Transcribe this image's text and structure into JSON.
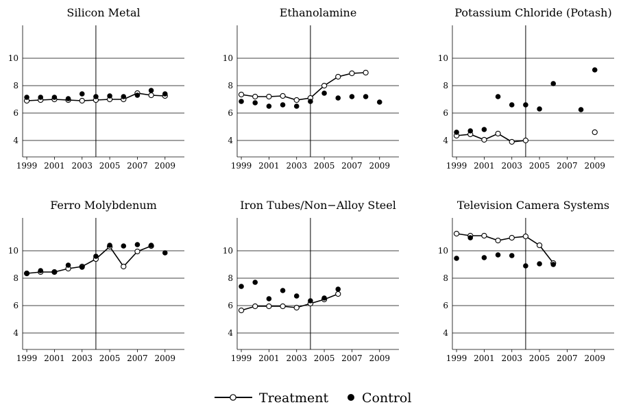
{
  "legend": {
    "treatment_label": "Treatment",
    "control_label": "Control",
    "placement": "bottom-center"
  },
  "chart_data": [
    {
      "type": "scatter",
      "title": "Silicon Metal",
      "xlabel": "",
      "ylabel": "",
      "xlim": [
        1998.7,
        2010.4
      ],
      "ylim": [
        2.8,
        12.4
      ],
      "xticks": [
        1999,
        2001,
        2003,
        2005,
        2007,
        2009
      ],
      "yticks": [
        4,
        6,
        8,
        10
      ],
      "grid": "horizontal",
      "vline": 2004,
      "series": [
        {
          "name": "Treatment",
          "style": "line-open-circle",
          "x": [
            1999,
            2000,
            2001,
            2002,
            2003,
            2004,
            2005,
            2006,
            2007,
            2008,
            2009
          ],
          "y": [
            6.9,
            6.95,
            7.0,
            6.95,
            6.9,
            6.95,
            7.0,
            7.0,
            7.45,
            7.3,
            7.25
          ]
        },
        {
          "name": "Control",
          "style": "filled-circle",
          "x": [
            1999,
            2000,
            2001,
            2002,
            2003,
            2004,
            2005,
            2006,
            2007,
            2008,
            2009
          ],
          "y": [
            7.15,
            7.15,
            7.15,
            7.05,
            7.4,
            7.2,
            7.25,
            7.2,
            7.3,
            7.65,
            7.4
          ]
        }
      ]
    },
    {
      "type": "scatter",
      "title": "Ethanolamine",
      "xlabel": "",
      "ylabel": "",
      "xlim": [
        1998.7,
        2010.4
      ],
      "ylim": [
        2.8,
        12.4
      ],
      "xticks": [
        1999,
        2001,
        2003,
        2005,
        2007,
        2009
      ],
      "yticks": [
        4,
        6,
        8,
        10
      ],
      "grid": "horizontal",
      "vline": 2004,
      "series": [
        {
          "name": "Treatment",
          "style": "line-open-circle",
          "x": [
            1999,
            2000,
            2001,
            2002,
            2003,
            2004,
            2005,
            2006,
            2007,
            2008
          ],
          "y": [
            7.35,
            7.2,
            7.2,
            7.25,
            6.95,
            7.1,
            8.0,
            8.65,
            8.9,
            8.95
          ]
        },
        {
          "name": "Control",
          "style": "filled-circle",
          "x": [
            1999,
            2000,
            2001,
            2002,
            2003,
            2004,
            2005,
            2006,
            2007,
            2008,
            2009
          ],
          "y": [
            6.85,
            6.75,
            6.5,
            6.6,
            6.5,
            6.85,
            7.45,
            7.1,
            7.2,
            7.2,
            6.8
          ]
        }
      ]
    },
    {
      "type": "scatter",
      "title": "Potassium Chloride (Potash)",
      "xlabel": "",
      "ylabel": "",
      "xlim": [
        1998.7,
        2010.4
      ],
      "ylim": [
        2.8,
        12.4
      ],
      "xticks": [
        1999,
        2001,
        2003,
        2005,
        2007,
        2009
      ],
      "yticks": [
        4,
        6,
        8,
        10
      ],
      "grid": "horizontal",
      "vline": 2004,
      "series": [
        {
          "name": "Treatment",
          "style": "line-open-circle",
          "x": [
            1999,
            2000,
            2001,
            2002,
            2003,
            2004
          ],
          "y": [
            4.35,
            4.45,
            4.05,
            4.5,
            3.9,
            4.0
          ]
        },
        {
          "name": "Treatment (isolated)",
          "style": "open-circle",
          "x": [
            2009
          ],
          "y": [
            4.6
          ]
        },
        {
          "name": "Control",
          "style": "filled-circle",
          "x": [
            1999,
            2000,
            2001,
            2002,
            2003,
            2004,
            2005,
            2006,
            2008,
            2009
          ],
          "y": [
            4.6,
            4.7,
            4.8,
            7.2,
            6.6,
            6.6,
            6.3,
            8.15,
            6.25,
            9.15
          ]
        }
      ]
    },
    {
      "type": "scatter",
      "title": "Ferro Molybdenum",
      "xlabel": "",
      "ylabel": "",
      "xlim": [
        1998.7,
        2010.4
      ],
      "ylim": [
        2.8,
        12.4
      ],
      "xticks": [
        1999,
        2001,
        2003,
        2005,
        2007,
        2009
      ],
      "yticks": [
        4,
        6,
        8,
        10
      ],
      "grid": "horizontal",
      "vline": 2004,
      "series": [
        {
          "name": "Treatment",
          "style": "line-open-circle",
          "x": [
            1999,
            2000,
            2001,
            2002,
            2003,
            2004,
            2005,
            2006,
            2007,
            2008
          ],
          "y": [
            8.35,
            8.45,
            8.45,
            8.7,
            8.85,
            9.4,
            10.3,
            8.85,
            9.95,
            10.35
          ]
        },
        {
          "name": "Control",
          "style": "filled-circle",
          "x": [
            1999,
            2000,
            2001,
            2002,
            2003,
            2004,
            2005,
            2006,
            2007,
            2008,
            2009
          ],
          "y": [
            8.35,
            8.55,
            8.45,
            8.95,
            8.8,
            9.6,
            10.4,
            10.35,
            10.45,
            10.4,
            9.85
          ]
        }
      ]
    },
    {
      "type": "scatter",
      "title": "Iron Tubes/Non−Alloy Steel",
      "xlabel": "",
      "ylabel": "",
      "xlim": [
        1998.7,
        2010.4
      ],
      "ylim": [
        2.8,
        12.4
      ],
      "xticks": [
        1999,
        2001,
        2003,
        2005,
        2007,
        2009
      ],
      "yticks": [
        4,
        6,
        8,
        10
      ],
      "grid": "horizontal",
      "vline": 2004,
      "series": [
        {
          "name": "Treatment",
          "style": "line-open-circle",
          "x": [
            1999,
            2000,
            2001,
            2002,
            2003,
            2004,
            2005,
            2006
          ],
          "y": [
            5.65,
            5.95,
            5.95,
            5.95,
            5.85,
            6.15,
            6.45,
            6.85
          ]
        },
        {
          "name": "Control",
          "style": "filled-circle",
          "x": [
            1999,
            2000,
            2001,
            2002,
            2003,
            2004,
            2005,
            2006
          ],
          "y": [
            7.4,
            7.7,
            6.5,
            7.1,
            6.7,
            6.35,
            6.55,
            7.2
          ]
        }
      ]
    },
    {
      "type": "scatter",
      "title": "Television Camera Systems",
      "xlabel": "",
      "ylabel": "",
      "xlim": [
        1998.7,
        2010.4
      ],
      "ylim": [
        2.8,
        12.4
      ],
      "xticks": [
        1999,
        2001,
        2003,
        2005,
        2007,
        2009
      ],
      "yticks": [
        4,
        6,
        8,
        10
      ],
      "grid": "horizontal",
      "vline": 2004,
      "series": [
        {
          "name": "Treatment",
          "style": "line-open-circle",
          "x": [
            1999,
            2000,
            2001,
            2002,
            2003,
            2004,
            2005,
            2006
          ],
          "y": [
            11.25,
            11.1,
            11.1,
            10.75,
            10.95,
            11.05,
            10.4,
            9.1
          ]
        },
        {
          "name": "Control",
          "style": "filled-circle",
          "x": [
            1999,
            2000,
            2001,
            2002,
            2003,
            2004,
            2005,
            2006
          ],
          "y": [
            9.45,
            10.95,
            9.5,
            9.7,
            9.65,
            8.9,
            9.05,
            9.0
          ]
        }
      ]
    }
  ]
}
